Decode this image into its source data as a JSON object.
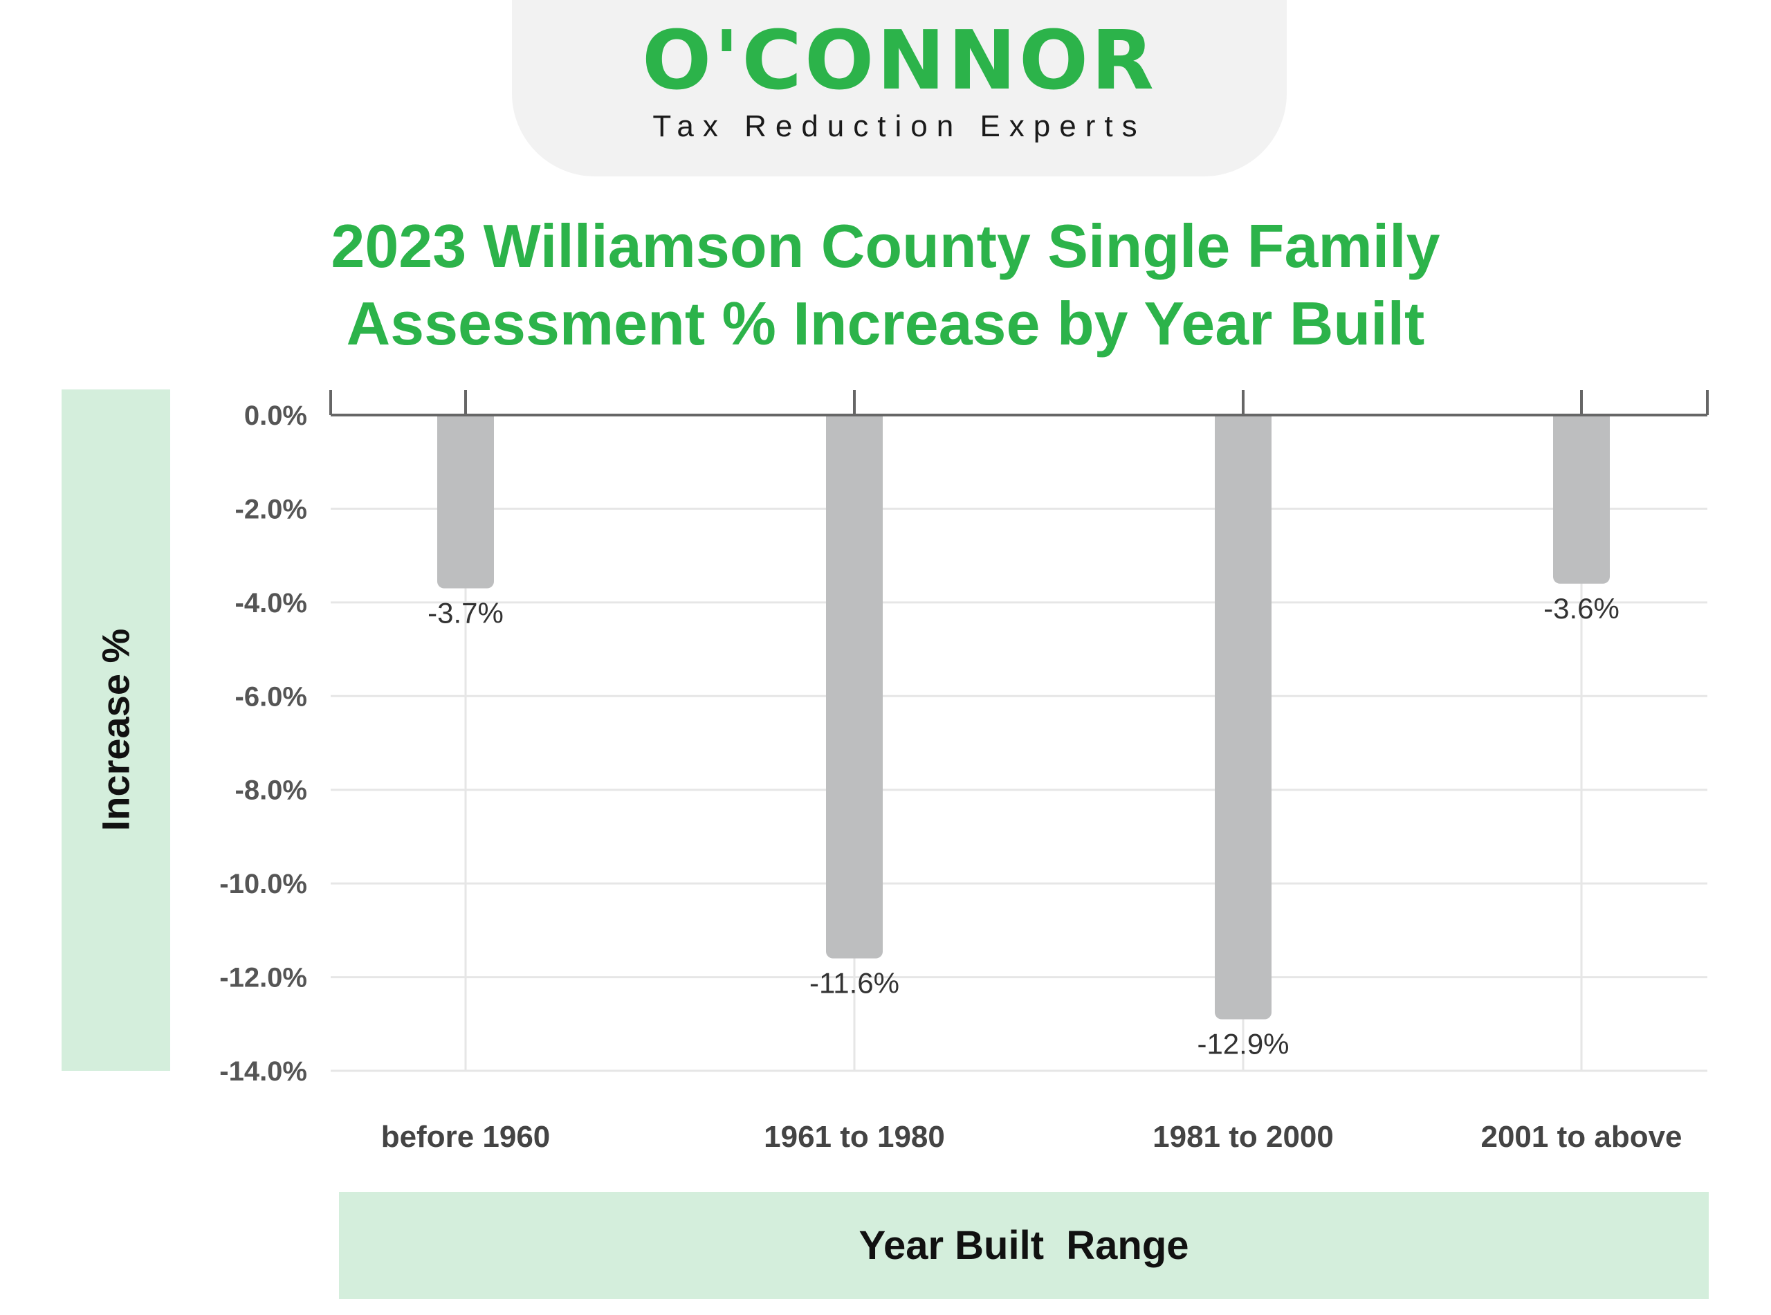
{
  "logo": {
    "wordmark": "O'CONNOR",
    "tagline": "Tax Reduction Experts"
  },
  "colors": {
    "brand_green": "#2cb34a",
    "panel_green": "#d4eedc",
    "bar": "#bdbebf",
    "grid": "#e6e6e6",
    "axis": "#666666"
  },
  "chart_data": {
    "type": "bar",
    "title": "2023 Williamson County Single Family Assessment % Increase by Year Built",
    "title_lines": [
      "2023 Williamson County Single Family",
      "Assessment % Increase by Year Built"
    ],
    "xlabel": "Year Built  Range",
    "ylabel": "Increase %",
    "categories": [
      "before 1960",
      "1961 to 1980",
      "1981 to 2000",
      "2001 to above"
    ],
    "values": [
      -3.7,
      -11.6,
      -12.9,
      -3.6
    ],
    "data_labels": [
      "-3.7%",
      "-11.6%",
      "-12.9%",
      "-3.6%"
    ],
    "ylim": [
      -14,
      0
    ],
    "yticks": [
      0,
      -2,
      -4,
      -6,
      -8,
      -10,
      -12,
      -14
    ],
    "ytick_labels": [
      "0.0%",
      "-2.0%",
      "-4.0%",
      "-6.0%",
      "-8.0%",
      "-10.0%",
      "-12.0%",
      "-14.0%"
    ],
    "grid": true,
    "legend": "none"
  }
}
